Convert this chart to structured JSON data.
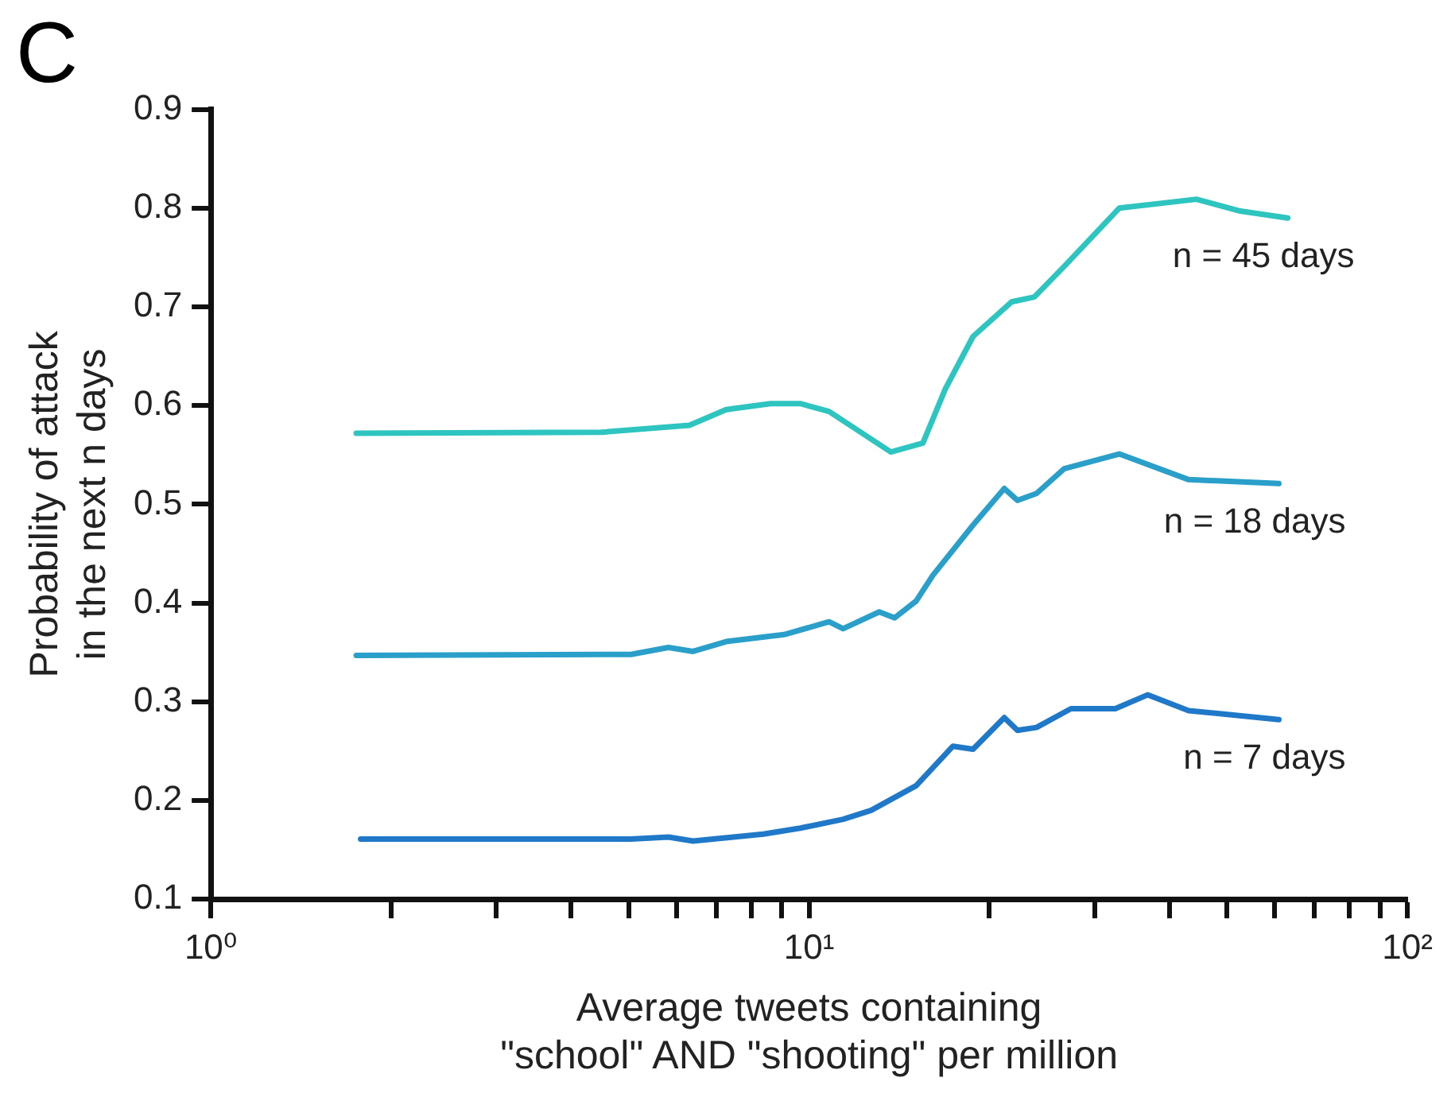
{
  "chart_data": {
    "type": "line",
    "title": "C",
    "xlabel": "Average tweets containing\n\"school\" AND \"shooting\" per million",
    "ylabel": "Probability of attack\nin the next n days",
    "log": "x",
    "xlim": [
      1,
      100
    ],
    "ylim": [
      0.1,
      0.9
    ],
    "xticks": [
      {
        "value": 1,
        "label": "10⁰"
      },
      {
        "value": 2,
        "label": null
      },
      {
        "value": 3,
        "label": null
      },
      {
        "value": 4,
        "label": null
      },
      {
        "value": 5,
        "label": null
      },
      {
        "value": 6,
        "label": null
      },
      {
        "value": 7,
        "label": null
      },
      {
        "value": 8,
        "label": null
      },
      {
        "value": 9,
        "label": null
      },
      {
        "value": 10,
        "label": "10¹"
      },
      {
        "value": 20,
        "label": null
      },
      {
        "value": 30,
        "label": null
      },
      {
        "value": 40,
        "label": null
      },
      {
        "value": 50,
        "label": null
      },
      {
        "value": 60,
        "label": null
      },
      {
        "value": 70,
        "label": null
      },
      {
        "value": 80,
        "label": null
      },
      {
        "value": 90,
        "label": null
      },
      {
        "value": 100,
        "label": "10²"
      }
    ],
    "yticks": [
      0.1,
      0.2,
      0.3,
      0.4,
      0.5,
      0.6,
      0.7,
      0.8,
      0.9
    ],
    "grid": false,
    "legend": false,
    "marker": "none",
    "line_style": "solid",
    "series": [
      {
        "name": "n = 45 days",
        "color": "#2ec4c0",
        "x": [
          1.75,
          4.5,
          6.31,
          7.27,
          8.62,
          9.67,
          10.8,
          13.7,
          15.5,
          16.9,
          18.8,
          21.8,
          23.8,
          26.7,
          33.0,
          44.4,
          52.6,
          63.1
        ],
        "values": [
          0.572,
          0.573,
          0.58,
          0.596,
          0.602,
          0.602,
          0.594,
          0.553,
          0.562,
          0.617,
          0.67,
          0.705,
          0.71,
          0.741,
          0.8,
          0.809,
          0.797,
          0.79
        ]
      },
      {
        "name": "n = 18 days",
        "color": "#2a9fc9",
        "x": [
          1.75,
          5.04,
          5.82,
          6.4,
          7.27,
          9.08,
          10.8,
          11.4,
          13.1,
          13.9,
          15.1,
          16.1,
          18.8,
          21.2,
          22.3,
          24.0,
          26.7,
          33.0,
          43.1,
          61.0
        ],
        "values": [
          0.347,
          0.348,
          0.355,
          0.351,
          0.361,
          0.368,
          0.381,
          0.374,
          0.391,
          0.385,
          0.402,
          0.428,
          0.479,
          0.516,
          0.504,
          0.511,
          0.536,
          0.551,
          0.525,
          0.521
        ]
      },
      {
        "name": "n = 7 days",
        "color": "#1f78c8",
        "x": [
          1.78,
          5.04,
          5.82,
          6.4,
          8.39,
          9.67,
          11.4,
          12.7,
          15.1,
          17.4,
          18.8,
          21.2,
          22.3,
          24.0,
          27.4,
          32.5,
          36.8,
          43.1,
          61.0
        ],
        "values": [
          0.161,
          0.161,
          0.163,
          0.159,
          0.166,
          0.172,
          0.181,
          0.19,
          0.215,
          0.255,
          0.252,
          0.284,
          0.271,
          0.274,
          0.293,
          0.293,
          0.307,
          0.291,
          0.282
        ]
      }
    ]
  }
}
